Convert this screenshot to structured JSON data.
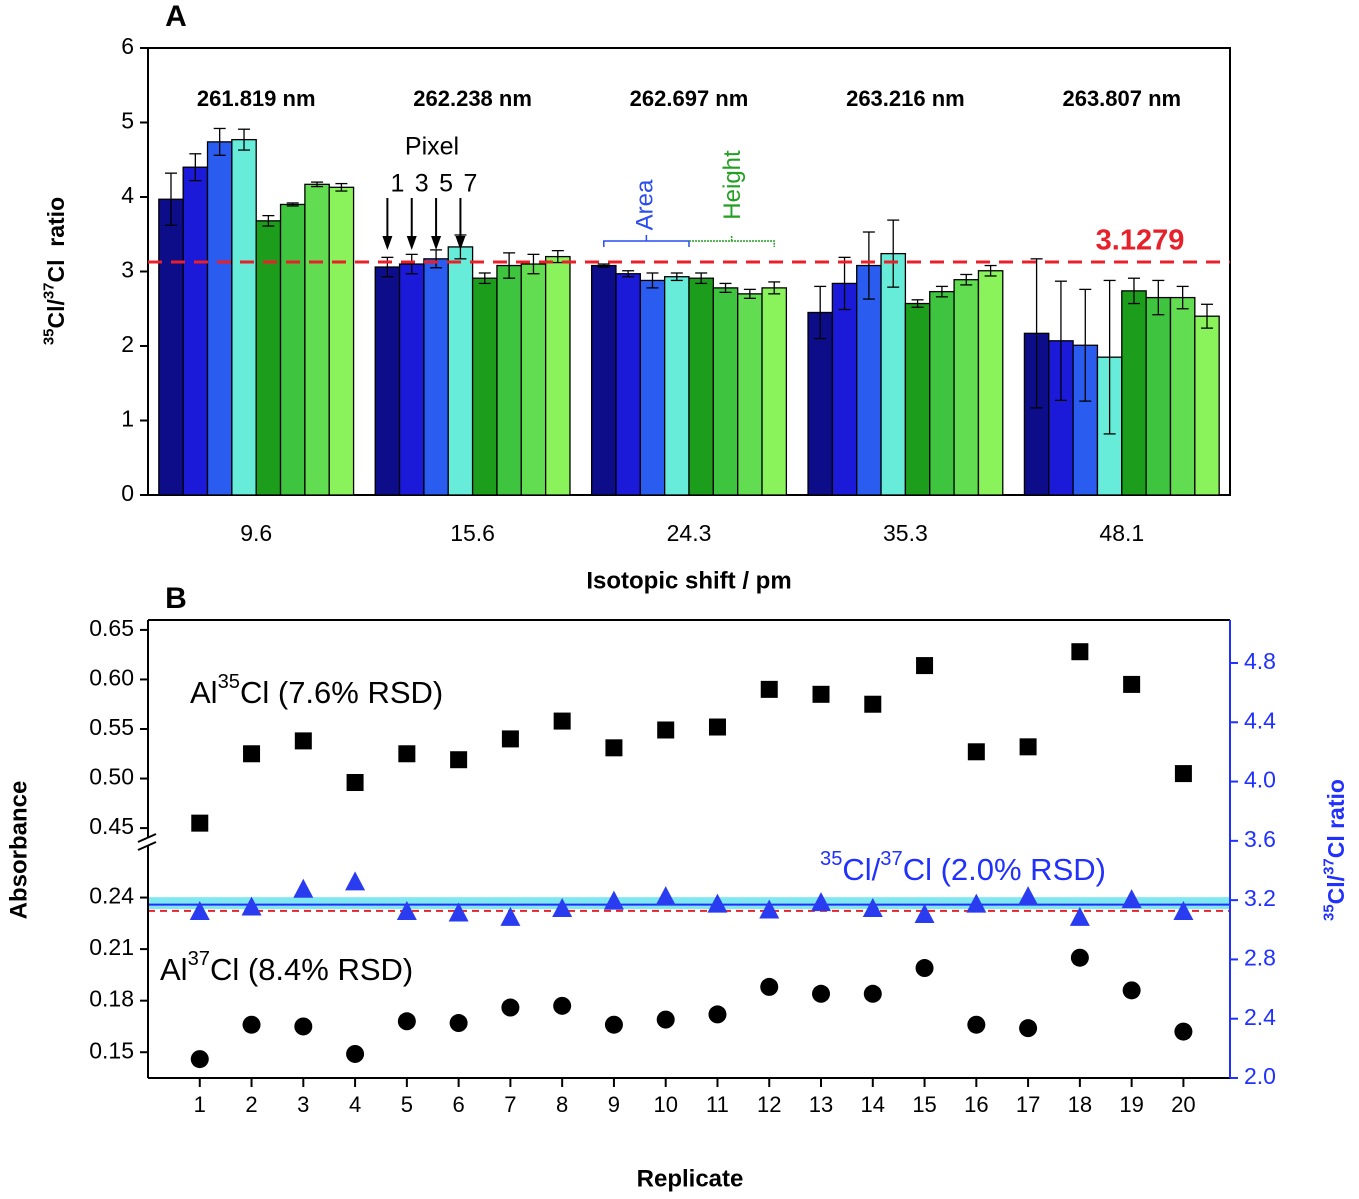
{
  "chart_data": [
    {
      "type": "bar",
      "title": "A",
      "ylabel": [
        {
          "text": "35",
          "sup": true
        },
        {
          "text": "Cl/"
        },
        {
          "text": "37",
          "sup": true
        },
        {
          "text": "Cl  ratio"
        }
      ],
      "xlabel": "Isotopic shift / pm",
      "categories": [
        "9.6",
        "15.6",
        "24.3",
        "35.3",
        "48.1"
      ],
      "group_labels": [
        "261.819 nm",
        "262.238 nm",
        "262.697 nm",
        "263.216 nm",
        "263.807 nm"
      ],
      "ylim": [
        0,
        6
      ],
      "yticks": [
        0,
        1,
        2,
        3,
        4,
        5,
        6
      ],
      "series": [
        {
          "color": "#0d0d8a",
          "values": [
            3.97,
            3.06,
            3.08,
            2.45,
            2.17
          ],
          "errors": [
            0.35,
            0.13,
            0.02,
            0.35,
            1.0
          ]
        },
        {
          "color": "#1a1ad8",
          "values": [
            4.4,
            3.1,
            2.97,
            2.84,
            2.07
          ],
          "errors": [
            0.18,
            0.13,
            0.04,
            0.35,
            0.8
          ]
        },
        {
          "color": "#2a5cf0",
          "values": [
            4.74,
            3.17,
            2.88,
            3.08,
            2.01
          ],
          "errors": [
            0.18,
            0.12,
            0.1,
            0.45,
            0.75
          ]
        },
        {
          "color": "#66ecd8",
          "values": [
            4.77,
            3.33,
            2.93,
            3.24,
            1.85
          ],
          "errors": [
            0.14,
            0.16,
            0.05,
            0.45,
            1.03
          ]
        },
        {
          "color": "#1c9e1c",
          "values": [
            3.68,
            2.91,
            2.91,
            2.57,
            2.74
          ],
          "errors": [
            0.07,
            0.07,
            0.07,
            0.05,
            0.17
          ]
        },
        {
          "color": "#3ec43e",
          "values": [
            3.9,
            3.08,
            2.78,
            2.73,
            2.65
          ],
          "errors": [
            0.02,
            0.17,
            0.06,
            0.07,
            0.23
          ]
        },
        {
          "color": "#62dc50",
          "values": [
            4.17,
            3.1,
            2.7,
            2.89,
            2.65
          ],
          "errors": [
            0.03,
            0.13,
            0.06,
            0.07,
            0.15
          ]
        },
        {
          "color": "#8af25a",
          "values": [
            4.13,
            3.2,
            2.78,
            3.01,
            2.4
          ],
          "errors": [
            0.05,
            0.08,
            0.08,
            0.07,
            0.16
          ]
        }
      ],
      "ref_line": {
        "value": 3.1279,
        "color": "#e8202a"
      },
      "pixel_label": "Pixel",
      "pixel_numbers": [
        "1",
        "3",
        "5",
        "7"
      ],
      "area_label": "Area",
      "area_color": "#2a4cf0",
      "height_label": "Height",
      "height_color": "#22a022"
    },
    {
      "type": "scatter",
      "title": "B",
      "xlabel": "Replicate",
      "ylabel": "Absorbance",
      "y2label": [
        {
          "text": "35",
          "sup": true
        },
        {
          "text": "Cl/"
        },
        {
          "text": "37",
          "sup": true
        },
        {
          "text": "Cl ratio"
        }
      ],
      "x": [
        1,
        2,
        3,
        4,
        5,
        6,
        7,
        8,
        9,
        10,
        11,
        12,
        13,
        14,
        15,
        16,
        17,
        18,
        19,
        20
      ],
      "xlim": [
        0,
        20.9
      ],
      "xticks": [
        1,
        2,
        3,
        4,
        5,
        6,
        7,
        8,
        9,
        10,
        11,
        12,
        13,
        14,
        15,
        16,
        17,
        18,
        19,
        20
      ],
      "y_segments": [
        {
          "ylim": [
            0.135,
            0.27
          ],
          "yticks": [
            0.15,
            0.18,
            0.21,
            0.24
          ]
        },
        {
          "ylim": [
            0.44,
            0.66
          ],
          "yticks": [
            0.45,
            {
              "value": 0.5,
              "label": "0.50"
            },
            0.55,
            {
              "value": 0.6,
              "label": "0.60"
            },
            0.65
          ]
        }
      ],
      "y2lim": [
        2.0,
        5.09
      ],
      "y2ticks": [
        {
          "value": 2.0,
          "label": "2.0"
        },
        2.4,
        2.8,
        3.2,
        3.6,
        {
          "value": 4.0,
          "label": "4.0"
        },
        4.4,
        4.8
      ],
      "y2color": "#2030ff",
      "series": [
        {
          "marker": "square",
          "color": "#000000",
          "segment": 1,
          "label": [
            {
              "text": "Al"
            },
            {
              "text": "35",
              "sup": true
            },
            {
              "text": "Cl (7.6% RSD)"
            }
          ],
          "values": [
            0.455,
            0.525,
            0.538,
            0.496,
            0.525,
            0.519,
            0.54,
            0.558,
            0.531,
            0.549,
            0.552,
            0.59,
            0.585,
            0.575,
            0.614,
            0.527,
            0.532,
            0.628,
            0.595,
            0.505
          ]
        },
        {
          "marker": "circle",
          "color": "#000000",
          "segment": 0,
          "label": [
            {
              "text": "Al"
            },
            {
              "text": "37",
              "sup": true
            },
            {
              "text": "Cl (8.4% RSD)"
            }
          ],
          "values": [
            0.146,
            0.166,
            0.165,
            0.149,
            0.168,
            0.167,
            0.176,
            0.177,
            0.166,
            0.169,
            0.172,
            0.188,
            0.184,
            0.184,
            0.199,
            0.166,
            0.164,
            0.205,
            0.186,
            0.162
          ]
        },
        {
          "marker": "triangle",
          "color": "#2a3cf0",
          "axis": "y2",
          "label": [
            {
              "text": "35",
              "sup": true
            },
            {
              "text": "Cl/"
            },
            {
              "text": "37",
              "sup": true
            },
            {
              "text": "Cl (2.0% RSD)"
            }
          ],
          "values": [
            3.12,
            3.15,
            3.27,
            3.32,
            3.12,
            3.11,
            3.08,
            3.14,
            3.19,
            3.22,
            3.17,
            3.13,
            3.18,
            3.14,
            3.1,
            3.17,
            3.22,
            3.08,
            3.2,
            3.12
          ]
        }
      ],
      "band": {
        "range": [
          3.14,
          3.22
        ],
        "color": "#7fe8f0"
      },
      "mean_line": {
        "value": 3.17,
        "color": "#2030ff"
      },
      "ref_line": {
        "value": 3.1279,
        "color": "#e8202a"
      }
    }
  ]
}
